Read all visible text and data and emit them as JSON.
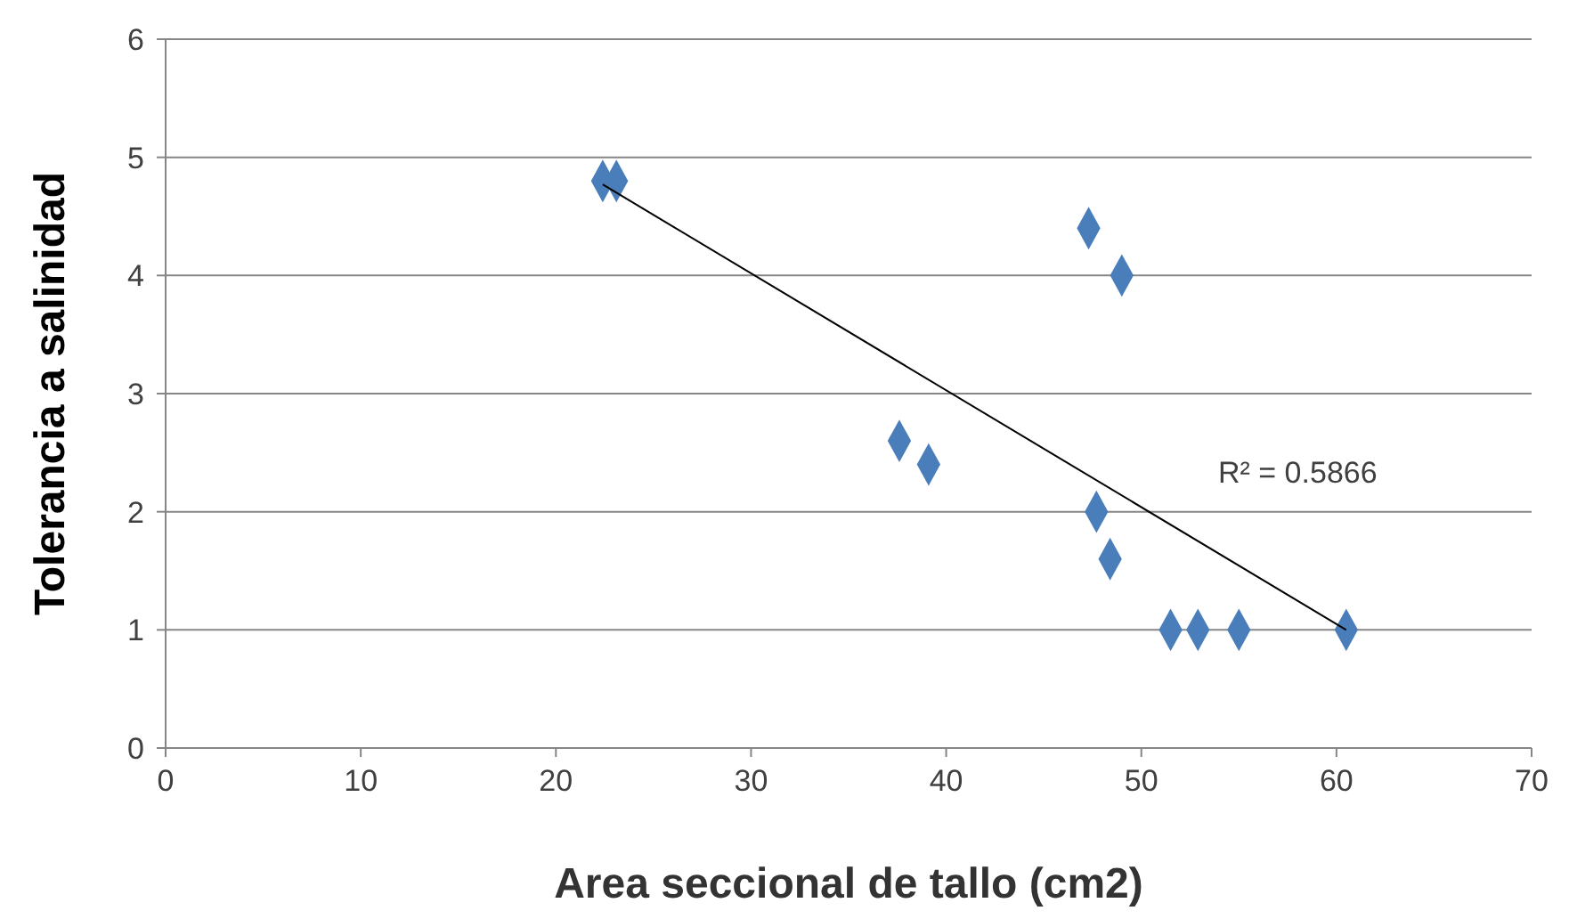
{
  "chart_data": {
    "type": "scatter",
    "xlabel": "Area seccional de tallo (cm2)",
    "ylabel": "Tolerancia  a salinidad",
    "xlim": [
      0,
      70
    ],
    "xticks": [
      0,
      10,
      20,
      30,
      40,
      50,
      60,
      70
    ],
    "ylim": [
      0,
      6
    ],
    "yticks": [
      0,
      1,
      2,
      3,
      4,
      5,
      6
    ],
    "grid": "y",
    "series": [
      {
        "color": "#4a7ebb",
        "marker": "diamond",
        "x": [
          22.4,
          23.1,
          47.3,
          49.0,
          37.6,
          39.1,
          47.7,
          48.4,
          51.5,
          52.9,
          55.0,
          60.5
        ],
        "values": [
          4.8,
          4.8,
          4.4,
          4.0,
          2.6,
          2.4,
          2.0,
          1.6,
          1.0,
          1.0,
          1.0,
          1.0
        ]
      },
      {
        "type": "line",
        "color": "#000000",
        "marker": "none",
        "x": [
          22.4,
          60.5
        ],
        "values": [
          4.77,
          1.0
        ]
      }
    ],
    "annotations": [
      "R² = 0.5866"
    ]
  }
}
